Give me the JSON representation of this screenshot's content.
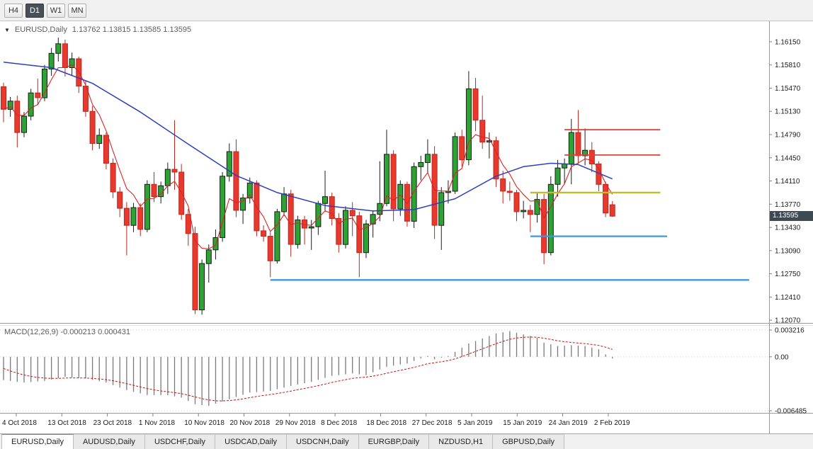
{
  "toolbar": {
    "timeframes": [
      {
        "label": "H4",
        "active": false
      },
      {
        "label": "D1",
        "active": true
      },
      {
        "label": "W1",
        "active": false
      },
      {
        "label": "MN",
        "active": false
      }
    ]
  },
  "chart_header": {
    "symbol": "EURUSD,Daily",
    "ohlc": "1.13762 1.13815 1.13585 1.13595"
  },
  "macd_header": {
    "label": "MACD(12,26,9) -0.000213 0.000431"
  },
  "current_price": "1.13595",
  "price_axis": [
    "1.16150",
    "1.15810",
    "1.15470",
    "1.15130",
    "1.14790",
    "1.14450",
    "1.14110",
    "1.13770",
    "1.13430",
    "1.13090",
    "1.12750",
    "1.12410",
    "1.12070"
  ],
  "macd_axis": [
    {
      "label": "0.003216",
      "value": 0.003216
    },
    {
      "label": "0.00",
      "value": 0
    },
    {
      "label": "-0.006485",
      "value": -0.006485
    }
  ],
  "time_axis": [
    "4 Oct 2018",
    "13 Oct 2018",
    "23 Oct 2018",
    "1 Nov 2018",
    "10 Nov 2018",
    "20 Nov 2018",
    "29 Nov 2018",
    "8 Dec 2018",
    "18 Dec 2018",
    "27 Dec 2018",
    "5 Jan 2019",
    "15 Jan 2019",
    "24 Jan 2019",
    "2 Feb 2019"
  ],
  "tabs": [
    {
      "label": "EURUSD,Daily",
      "active": true
    },
    {
      "label": "AUDUSD,Daily",
      "active": false
    },
    {
      "label": "USDCHF,Daily",
      "active": false
    },
    {
      "label": "USDCAD,Daily",
      "active": false
    },
    {
      "label": "USDCNH,Daily",
      "active": false
    },
    {
      "label": "EURGBP,Daily",
      "active": false
    },
    {
      "label": "NZDUSD,H1",
      "active": false
    },
    {
      "label": "GBPUSD,Daily",
      "active": false
    }
  ],
  "colors": {
    "bull": "#2da333",
    "bear": "#e8392e",
    "bull_outline": "#1c1c1c",
    "bear_outline": "#bf251c",
    "ma_fast": "#dd2222",
    "ma_slow": "#2b3fc0",
    "macd_bars": "#7a7a7a",
    "macd_signal": "#cc1111",
    "accent_badge": "#3d4a52"
  },
  "chart_data": {
    "type": "candlestick",
    "symbol": "EURUSD",
    "timeframe": "Daily",
    "bar_count": 90,
    "price_range": [
      1.1203,
      1.1645
    ],
    "candles_ohlc": [
      [
        1.1549,
        1.1555,
        1.1497,
        1.1516
      ],
      [
        1.1516,
        1.1534,
        1.1505,
        1.1528
      ],
      [
        1.1528,
        1.1536,
        1.146,
        1.1482
      ],
      [
        1.1482,
        1.1512,
        1.1475,
        1.1506
      ],
      [
        1.1506,
        1.1546,
        1.15,
        1.154
      ],
      [
        1.154,
        1.1561,
        1.1522,
        1.1533
      ],
      [
        1.1533,
        1.1581,
        1.1528,
        1.1575
      ],
      [
        1.1575,
        1.1606,
        1.1565,
        1.1598
      ],
      [
        1.1598,
        1.1621,
        1.1586,
        1.1612
      ],
      [
        1.1612,
        1.1618,
        1.1564,
        1.1577
      ],
      [
        1.1577,
        1.1599,
        1.1566,
        1.159
      ],
      [
        1.159,
        1.1593,
        1.154,
        1.155
      ],
      [
        1.155,
        1.1558,
        1.1505,
        1.1513
      ],
      [
        1.1513,
        1.1521,
        1.1456,
        1.1466
      ],
      [
        1.1466,
        1.1488,
        1.1458,
        1.1478
      ],
      [
        1.1478,
        1.1482,
        1.1428,
        1.1437
      ],
      [
        1.1437,
        1.1444,
        1.1386,
        1.1395
      ],
      [
        1.1395,
        1.1402,
        1.1358,
        1.1371
      ],
      [
        1.1371,
        1.138,
        1.1302,
        1.1346
      ],
      [
        1.1346,
        1.1379,
        1.1336,
        1.1372
      ],
      [
        1.1372,
        1.1378,
        1.133,
        1.134
      ],
      [
        1.134,
        1.1412,
        1.1336,
        1.1406
      ],
      [
        1.1406,
        1.1424,
        1.138,
        1.1388
      ],
      [
        1.1388,
        1.141,
        1.1378,
        1.1404
      ],
      [
        1.1404,
        1.1438,
        1.1392,
        1.1428
      ],
      [
        1.1428,
        1.15,
        1.1398,
        1.1424
      ],
      [
        1.1424,
        1.1436,
        1.1354,
        1.1362
      ],
      [
        1.1362,
        1.137,
        1.1316,
        1.1334
      ],
      [
        1.1334,
        1.1344,
        1.1216,
        1.1222
      ],
      [
        1.1222,
        1.1296,
        1.1215,
        1.129
      ],
      [
        1.129,
        1.1318,
        1.1262,
        1.131
      ],
      [
        1.131,
        1.134,
        1.1296,
        1.1328
      ],
      [
        1.1328,
        1.1424,
        1.1322,
        1.1418
      ],
      [
        1.1418,
        1.1466,
        1.141,
        1.1454
      ],
      [
        1.1454,
        1.1472,
        1.1358,
        1.1368
      ],
      [
        1.1368,
        1.1392,
        1.1348,
        1.1386
      ],
      [
        1.1386,
        1.1416,
        1.1378,
        1.1408
      ],
      [
        1.1408,
        1.1412,
        1.133,
        1.1338
      ],
      [
        1.1338,
        1.1346,
        1.1322,
        1.133
      ],
      [
        1.133,
        1.1336,
        1.127,
        1.1294
      ],
      [
        1.1294,
        1.137,
        1.129,
        1.1366
      ],
      [
        1.1366,
        1.1402,
        1.136,
        1.1392
      ],
      [
        1.1392,
        1.1398,
        1.13,
        1.1318
      ],
      [
        1.1318,
        1.136,
        1.1312,
        1.1354
      ],
      [
        1.1354,
        1.136,
        1.1318,
        1.1342
      ],
      [
        1.1342,
        1.1354,
        1.131,
        1.1344
      ],
      [
        1.1344,
        1.1382,
        1.1332,
        1.1378
      ],
      [
        1.1378,
        1.1426,
        1.1366,
        1.1388
      ],
      [
        1.1388,
        1.1394,
        1.1346,
        1.1356
      ],
      [
        1.1356,
        1.1364,
        1.1306,
        1.1318
      ],
      [
        1.1318,
        1.1374,
        1.1312,
        1.1368
      ],
      [
        1.1368,
        1.138,
        1.133,
        1.136
      ],
      [
        1.136,
        1.1366,
        1.127,
        1.1306
      ],
      [
        1.1306,
        1.1354,
        1.1298,
        1.1348
      ],
      [
        1.1348,
        1.1368,
        1.1328,
        1.1362
      ],
      [
        1.1362,
        1.144,
        1.1352,
        1.1378
      ],
      [
        1.1378,
        1.1486,
        1.1374,
        1.145
      ],
      [
        1.145,
        1.1456,
        1.1352,
        1.137
      ],
      [
        1.137,
        1.1412,
        1.136,
        1.1406
      ],
      [
        1.1406,
        1.141,
        1.1344,
        1.1352
      ],
      [
        1.1352,
        1.1438,
        1.1342,
        1.1432
      ],
      [
        1.1432,
        1.1448,
        1.1412,
        1.1438
      ],
      [
        1.1438,
        1.1472,
        1.1422,
        1.145
      ],
      [
        1.145,
        1.1462,
        1.1326,
        1.1346
      ],
      [
        1.1346,
        1.1402,
        1.131,
        1.1394
      ],
      [
        1.1394,
        1.1412,
        1.1378,
        1.1396
      ],
      [
        1.1396,
        1.1482,
        1.1392,
        1.1476
      ],
      [
        1.1476,
        1.1486,
        1.1432,
        1.1442
      ],
      [
        1.1442,
        1.1572,
        1.1434,
        1.1546
      ],
      [
        1.1546,
        1.1562,
        1.1484,
        1.15
      ],
      [
        1.15,
        1.1536,
        1.1458,
        1.1468
      ],
      [
        1.1468,
        1.1482,
        1.1444,
        1.147
      ],
      [
        1.147,
        1.1476,
        1.1402,
        1.1414
      ],
      [
        1.1414,
        1.1426,
        1.1378,
        1.1396
      ],
      [
        1.1396,
        1.141,
        1.1382,
        1.1394
      ],
      [
        1.1394,
        1.1398,
        1.1352,
        1.1366
      ],
      [
        1.1366,
        1.1382,
        1.1356,
        1.1368
      ],
      [
        1.1368,
        1.1376,
        1.1336,
        1.1362
      ],
      [
        1.1362,
        1.1394,
        1.135,
        1.1384
      ],
      [
        1.1384,
        1.1392,
        1.1289,
        1.1306
      ],
      [
        1.1306,
        1.1418,
        1.1302,
        1.1406
      ],
      [
        1.1406,
        1.1442,
        1.1388,
        1.143
      ],
      [
        1.143,
        1.1444,
        1.1406,
        1.1436
      ],
      [
        1.1436,
        1.1502,
        1.1406,
        1.1482
      ],
      [
        1.1482,
        1.1515,
        1.1436,
        1.1448
      ],
      [
        1.1448,
        1.1488,
        1.1434,
        1.1456
      ],
      [
        1.1456,
        1.1468,
        1.1424,
        1.1436
      ],
      [
        1.1436,
        1.144,
        1.1396,
        1.1406
      ],
      [
        1.1406,
        1.141,
        1.1358,
        1.1364
      ],
      [
        1.13762,
        1.13815,
        1.13585,
        1.13595
      ]
    ],
    "overlays": {
      "ma_fast": {
        "type": "ema",
        "period": 5
      },
      "ma_slow_points": [
        [
          0,
          1.1585
        ],
        [
          7,
          1.1577
        ],
        [
          13,
          1.1554
        ],
        [
          20,
          1.1512
        ],
        [
          27,
          1.1465
        ],
        [
          34,
          1.1419
        ],
        [
          40,
          1.1394
        ],
        [
          47,
          1.1375
        ],
        [
          54,
          1.1367
        ],
        [
          60,
          1.1369
        ],
        [
          66,
          1.1385
        ],
        [
          72,
          1.1418
        ],
        [
          76,
          1.1432
        ],
        [
          80,
          1.1437
        ],
        [
          84,
          1.1435
        ],
        [
          89,
          1.1414
        ]
      ]
    },
    "hlines": [
      {
        "price": 1.1486,
        "from_bar": 82,
        "to_bar": 96,
        "color": "#d8453c",
        "width": 1.8
      },
      {
        "price": 1.1449,
        "from_bar": 82,
        "to_bar": 96,
        "color": "#d8453c",
        "width": 1.8
      },
      {
        "price": 1.1394,
        "from_bar": 77,
        "to_bar": 96,
        "color": "#bdbd2e",
        "width": 2.4
      },
      {
        "price": 1.133,
        "from_bar": 77,
        "to_bar": 97,
        "color": "#4596dd",
        "width": 2.2
      },
      {
        "price": 1.1266,
        "from_bar": 39,
        "to_bar": 109,
        "color": "#4596dd",
        "width": 2.4
      }
    ],
    "macd": {
      "label": "MACD(12,26,9)",
      "value": -0.000213,
      "signal_value": 0.000431,
      "range": [
        -0.00674,
        0.00373
      ],
      "signal_period": 9,
      "histogram_keypoints": [
        [
          0,
          -0.0028
        ],
        [
          3,
          -0.0031
        ],
        [
          6,
          -0.0029
        ],
        [
          9,
          -0.0024
        ],
        [
          12,
          -0.0026
        ],
        [
          15,
          -0.0031
        ],
        [
          18,
          -0.004
        ],
        [
          21,
          -0.0046
        ],
        [
          24,
          -0.0046
        ],
        [
          26,
          -0.0049
        ],
        [
          28,
          -0.0057
        ],
        [
          30,
          -0.0059
        ],
        [
          33,
          -0.0051
        ],
        [
          36,
          -0.0043
        ],
        [
          39,
          -0.0041
        ],
        [
          42,
          -0.0035
        ],
        [
          45,
          -0.003
        ],
        [
          48,
          -0.0023
        ],
        [
          51,
          -0.002
        ],
        [
          53,
          -0.0022
        ],
        [
          56,
          -0.0012
        ],
        [
          59,
          -0.0008
        ],
        [
          62,
          0.0001
        ],
        [
          63,
          -0.0003
        ],
        [
          65,
          0.0001
        ],
        [
          68,
          0.0016
        ],
        [
          70,
          0.0022
        ],
        [
          72,
          0.0028
        ],
        [
          74,
          0.0031
        ],
        [
          76,
          0.0027
        ],
        [
          78,
          0.0023
        ],
        [
          79,
          0.0017
        ],
        [
          81,
          0.0013
        ],
        [
          83,
          0.0014
        ],
        [
          85,
          0.0013
        ],
        [
          87,
          0.0009
        ],
        [
          88,
          0.0003
        ],
        [
          89,
          -0.0002
        ]
      ]
    }
  }
}
